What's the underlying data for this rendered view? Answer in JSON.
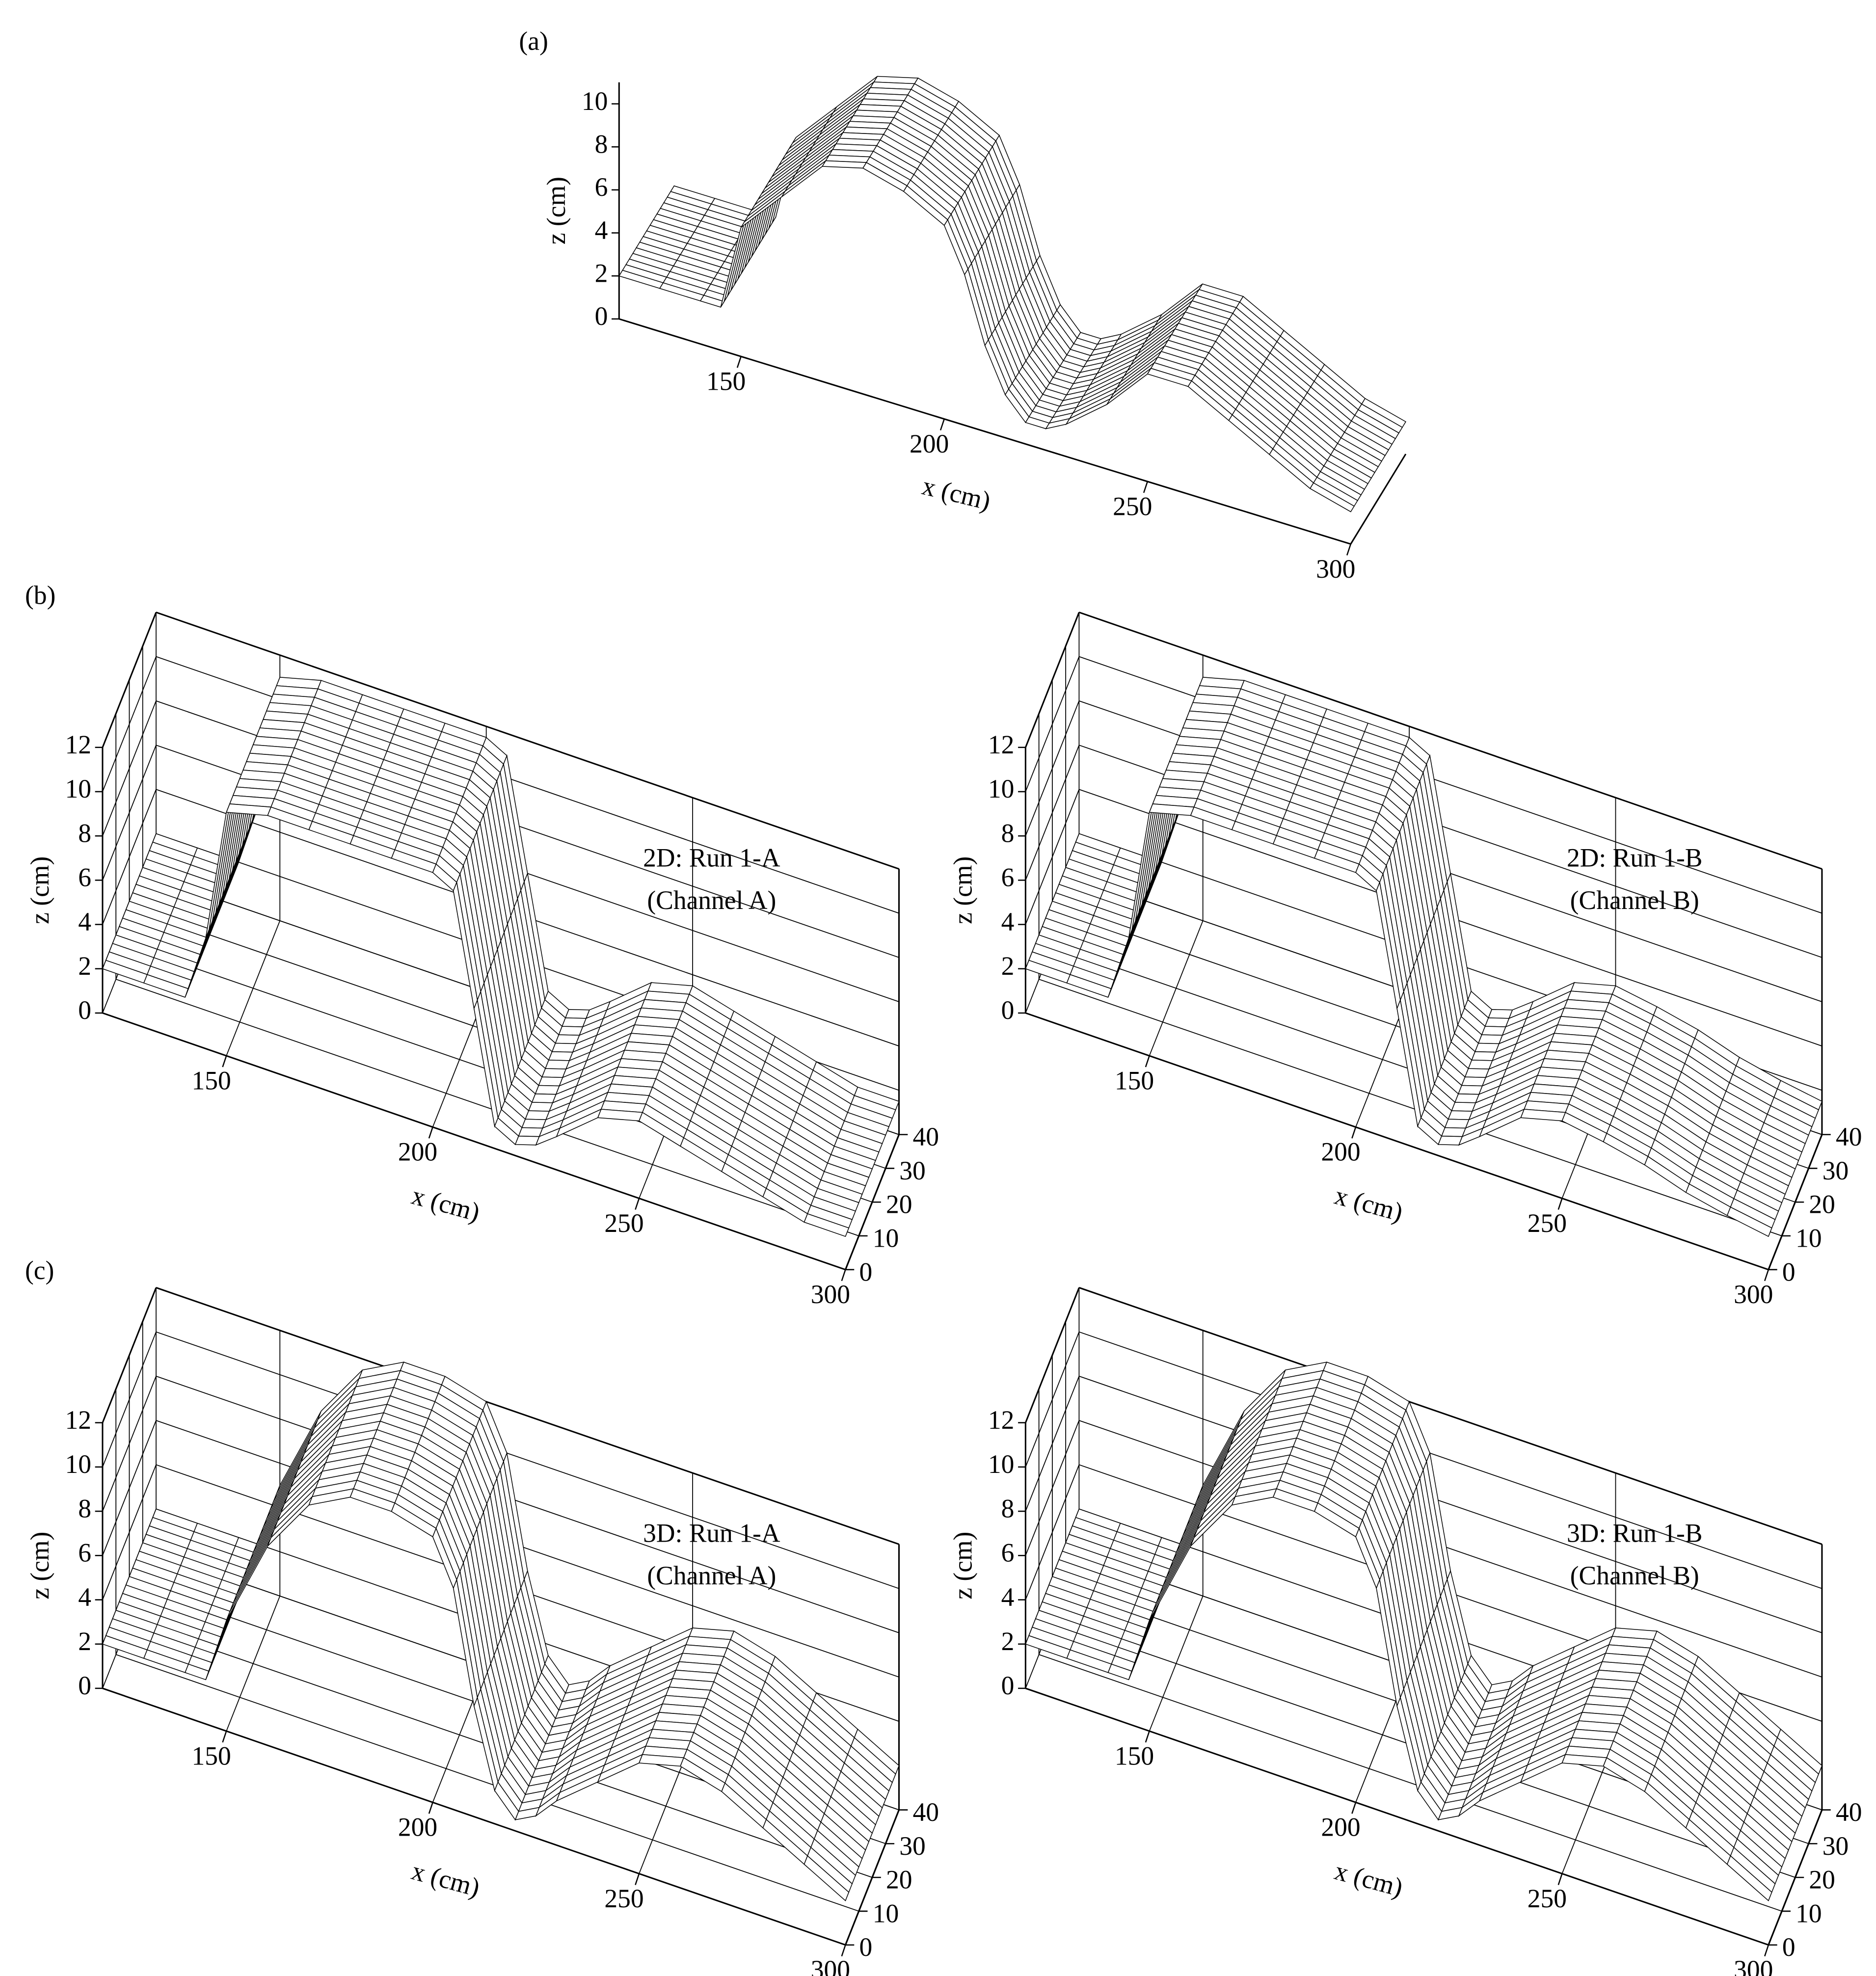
{
  "chart_data": [
    {
      "type": "surface3d",
      "panel": "(a)",
      "zlabel": "z (cm)",
      "xlabel": "x (cm)",
      "box": false,
      "x": [
        120,
        130,
        140,
        145,
        150,
        160,
        170,
        180,
        190,
        200,
        205,
        210,
        215,
        220,
        225,
        230,
        240,
        250,
        260,
        270,
        280,
        290,
        300
      ],
      "values": [
        2,
        2,
        2,
        2,
        6,
        8,
        10,
        10.5,
        10,
        9,
        7,
        4,
        2,
        1,
        1,
        1.5,
        3,
        5,
        5,
        4,
        3,
        2,
        1.5
      ],
      "xlim": [
        120,
        300
      ],
      "xticks": [
        150,
        200,
        250,
        300
      ],
      "ylim": [
        0,
        40
      ],
      "zlim": [
        0,
        11
      ],
      "zticks": [
        0,
        2,
        4,
        6,
        8,
        10
      ]
    },
    {
      "type": "surface3d",
      "panel": "(b)",
      "zlabel": "z (cm)",
      "xlabel": "x (cm)",
      "box": true,
      "annotation": [
        "2D: Run 1-A",
        "(Channel A)"
      ],
      "x": [
        120,
        130,
        140,
        145,
        150,
        160,
        170,
        180,
        190,
        200,
        205,
        210,
        215,
        220,
        225,
        230,
        240,
        250,
        260,
        270,
        280,
        290,
        300
      ],
      "values": [
        2,
        2,
        2,
        5,
        11,
        11.5,
        11.5,
        11.5,
        11.5,
        11.5,
        11,
        6,
        1,
        0.5,
        0.8,
        1.5,
        3,
        3.5,
        3,
        2.5,
        2,
        1.5,
        1.5
      ],
      "xlim": [
        120,
        300
      ],
      "xticks": [
        150,
        200,
        250,
        300
      ],
      "ylim": [
        0,
        40
      ],
      "yticks": [
        0,
        10,
        20,
        30,
        40
      ],
      "zlim": [
        0,
        12
      ],
      "zticks": [
        0,
        2,
        4,
        6,
        8,
        10,
        12
      ]
    },
    {
      "type": "surface3d",
      "zlabel": "z (cm)",
      "xlabel": "x (cm)",
      "box": true,
      "annotation": [
        "2D: Run 1-B",
        "(Channel B)"
      ],
      "x": [
        120,
        130,
        140,
        145,
        150,
        160,
        170,
        180,
        190,
        200,
        205,
        210,
        215,
        220,
        225,
        230,
        240,
        250,
        260,
        270,
        280,
        290,
        300
      ],
      "values": [
        2,
        2,
        2,
        5,
        11,
        11.5,
        11.5,
        11.5,
        11.5,
        11.5,
        11,
        6,
        1,
        0.5,
        0.8,
        1.5,
        3,
        3.5,
        3.2,
        2.8,
        2.2,
        1.8,
        1.5
      ],
      "xlim": [
        120,
        300
      ],
      "xticks": [
        150,
        200,
        250,
        300
      ],
      "ylim": [
        0,
        40
      ],
      "yticks": [
        0,
        10,
        20,
        30,
        40
      ],
      "zlim": [
        0,
        12
      ],
      "zticks": [
        0,
        2,
        4,
        6,
        8,
        10,
        12
      ]
    },
    {
      "type": "surface3d",
      "panel": "(c)",
      "zlabel": "z (cm)",
      "xlabel": "x (cm)",
      "box": true,
      "annotation": [
        "3D: Run 1-A",
        "(Channel A)"
      ],
      "x": [
        120,
        130,
        140,
        145,
        150,
        160,
        170,
        180,
        190,
        200,
        205,
        210,
        215,
        220,
        225,
        230,
        240,
        250,
        260,
        270,
        280,
        290,
        300
      ],
      "values": [
        2,
        2,
        2,
        2,
        5,
        9,
        11.5,
        12.5,
        12.5,
        12,
        10,
        5,
        1.5,
        0.5,
        1,
        2,
        3.5,
        5,
        5.5,
        5,
        4,
        3,
        2
      ],
      "xlim": [
        120,
        300
      ],
      "xticks": [
        150,
        200,
        250,
        300
      ],
      "ylim": [
        0,
        40
      ],
      "yticks": [
        0,
        10,
        20,
        30,
        40
      ],
      "zlim": [
        0,
        12
      ],
      "zticks": [
        0,
        2,
        4,
        6,
        8,
        10,
        12
      ]
    },
    {
      "type": "surface3d",
      "zlabel": "z (cm)",
      "xlabel": "x (cm)",
      "box": true,
      "annotation": [
        "3D: Run 1-B",
        "(Channel B)"
      ],
      "x": [
        120,
        130,
        140,
        145,
        150,
        160,
        170,
        180,
        190,
        200,
        205,
        210,
        215,
        220,
        225,
        230,
        240,
        250,
        260,
        270,
        280,
        290,
        300
      ],
      "values": [
        2,
        2,
        2,
        2,
        5,
        9,
        11.5,
        12.5,
        12.5,
        12,
        10,
        5,
        1.5,
        0.5,
        1,
        2,
        3.5,
        5,
        5.5,
        5,
        4,
        3,
        2
      ],
      "xlim": [
        120,
        300
      ],
      "xticks": [
        150,
        200,
        250,
        300
      ],
      "ylim": [
        0,
        40
      ],
      "yticks": [
        0,
        10,
        20,
        30,
        40
      ],
      "zlim": [
        0,
        12
      ],
      "zticks": [
        0,
        2,
        4,
        6,
        8,
        10,
        12
      ]
    }
  ]
}
